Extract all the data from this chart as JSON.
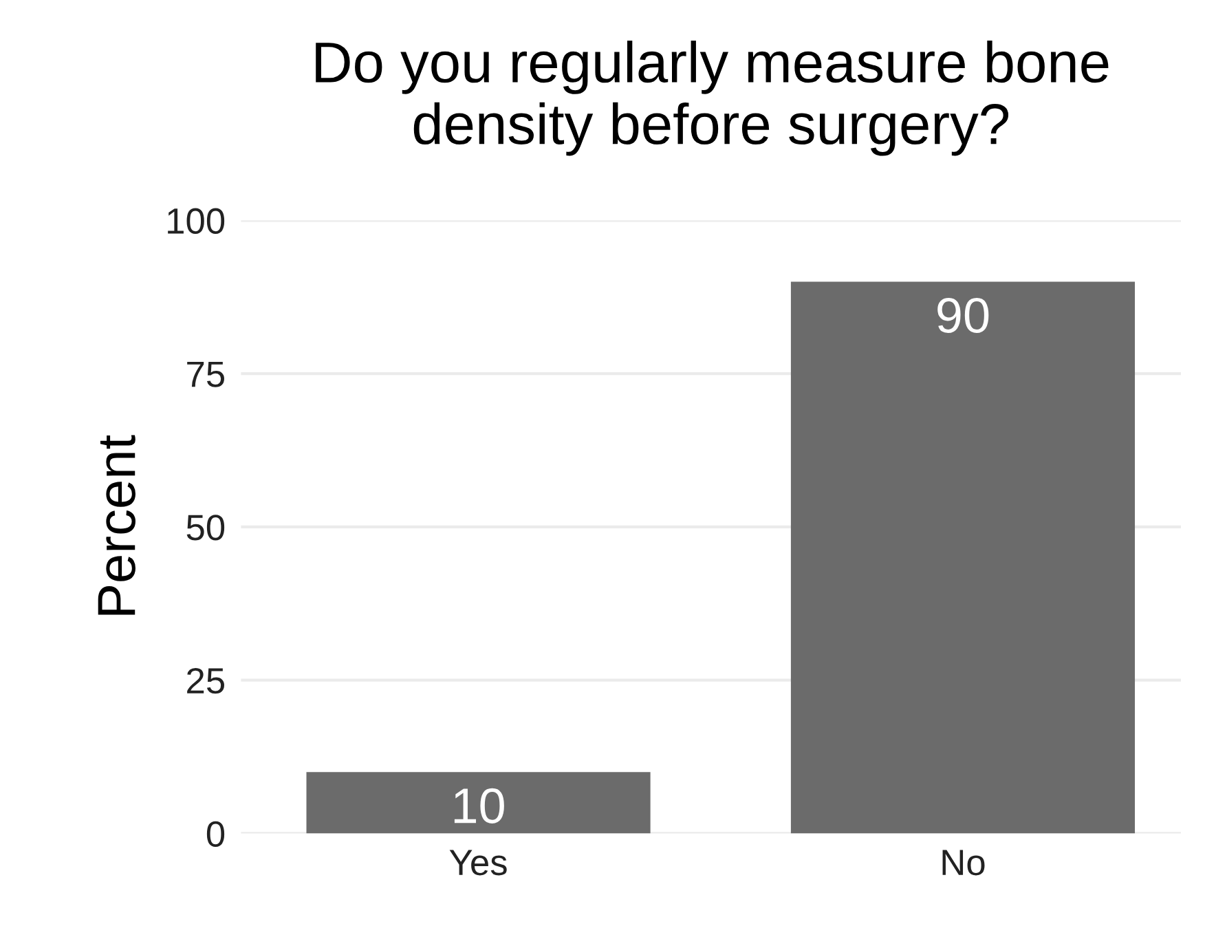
{
  "chart_data": {
    "type": "bar",
    "title": "Do you regularly measure bone\ndensity before surgery?",
    "ylabel": "Percent",
    "categories": [
      "Yes",
      "No"
    ],
    "values": [
      10,
      90
    ],
    "color": "#6b6b6b",
    "ylim": [
      0,
      100
    ],
    "yticks": [
      0,
      25,
      50,
      75,
      100
    ],
    "grid": "y",
    "data_labels": true
  }
}
